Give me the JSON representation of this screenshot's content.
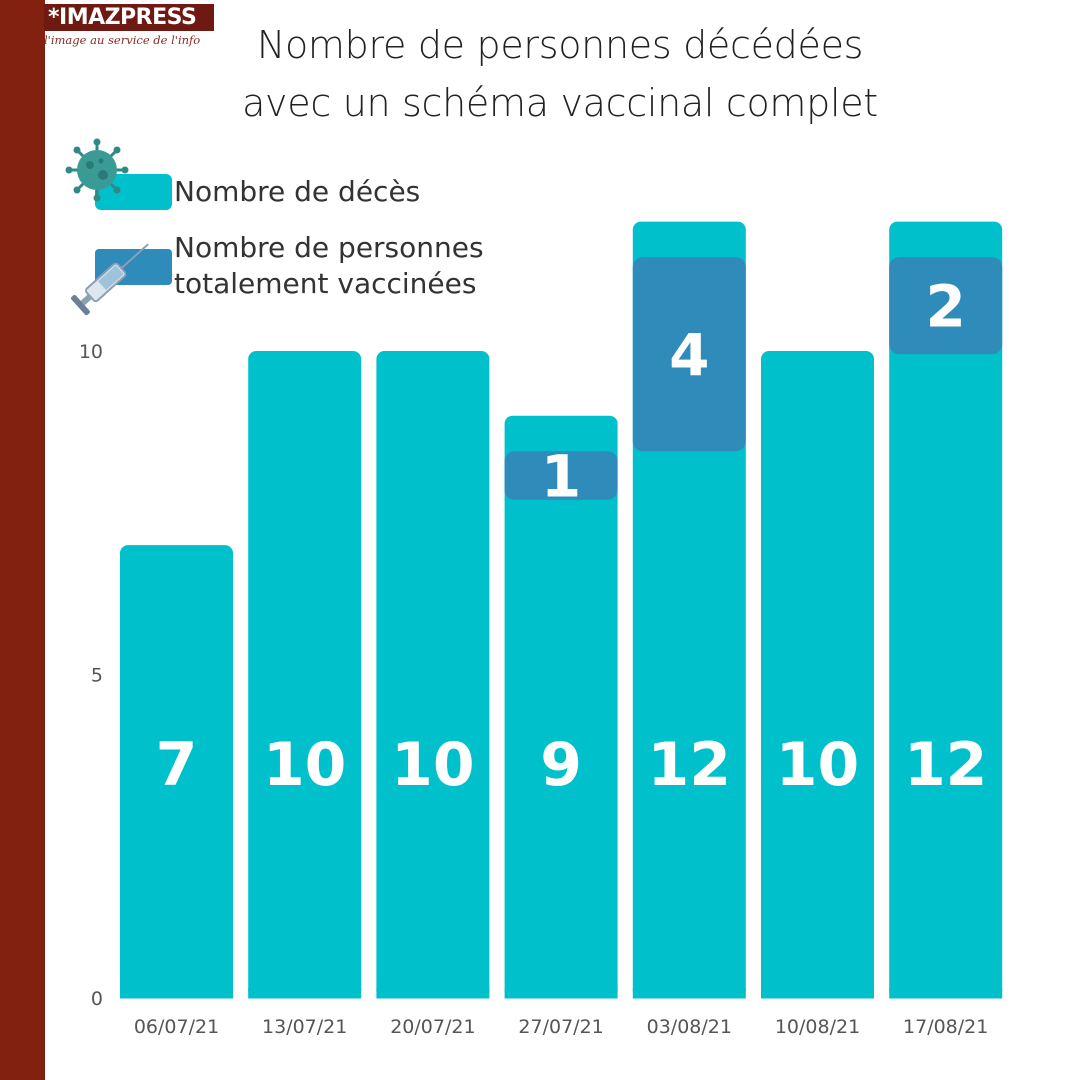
{
  "brand": {
    "name": "*IMAZPRESS",
    "tagline": "l'image au service de l'info"
  },
  "title_line1": "Nombre de personnes décédées",
  "title_line2": "avec un schéma vaccinal complet",
  "colors": {
    "deaths": "#00c1cb",
    "vaccinated": "#2e8bba",
    "stripe": "#82210f",
    "bar_label": "#ffffff",
    "axis_text": "#555555"
  },
  "legend": [
    {
      "label": "Nombre de décès",
      "icon": "virus-icon",
      "color": "#00c1cb"
    },
    {
      "label_line1": "Nombre de personnes",
      "label_line2": "totalement vaccinées",
      "icon": "syringe-icon",
      "color": "#2e8bba"
    }
  ],
  "chart_data": {
    "type": "bar",
    "categories": [
      "06/07/21",
      "13/07/21",
      "20/07/21",
      "27/07/21",
      "03/08/21",
      "10/08/21",
      "17/08/21"
    ],
    "series": [
      {
        "name": "Nombre de décès",
        "values": [
          7,
          10,
          10,
          9,
          12,
          10,
          12
        ]
      },
      {
        "name": "Nombre de personnes totalement vaccinées",
        "values": [
          0,
          0,
          0,
          1,
          4,
          0,
          2
        ]
      }
    ],
    "ylim": [
      0,
      12
    ],
    "yticks": [
      0,
      5,
      10
    ],
    "grid": false,
    "legend_position": "top-left"
  }
}
